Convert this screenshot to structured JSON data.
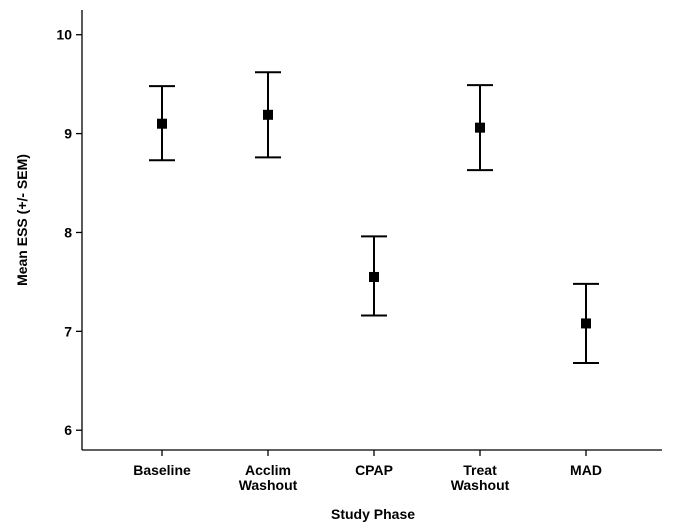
{
  "chart_data": {
    "type": "scatter",
    "title": "",
    "xlabel": "Study Phase",
    "ylabel": "Mean ESS (+/- SEM)",
    "ylim": [
      5.8,
      10.25
    ],
    "yticks": [
      "6",
      "7",
      "8",
      "9",
      "10"
    ],
    "categories": [
      [
        "Baseline"
      ],
      [
        "Acclim",
        "Washout"
      ],
      [
        "CPAP"
      ],
      [
        "Treat",
        "Washout"
      ],
      [
        "MAD"
      ]
    ],
    "series": [
      {
        "values": [
          9.1,
          9.19,
          7.55,
          9.06,
          7.08
        ],
        "lower": [
          8.73,
          8.76,
          7.16,
          8.63,
          6.68
        ],
        "upper": [
          9.48,
          9.62,
          7.96,
          9.49,
          7.48
        ]
      }
    ],
    "grid": false,
    "legend": "none"
  }
}
